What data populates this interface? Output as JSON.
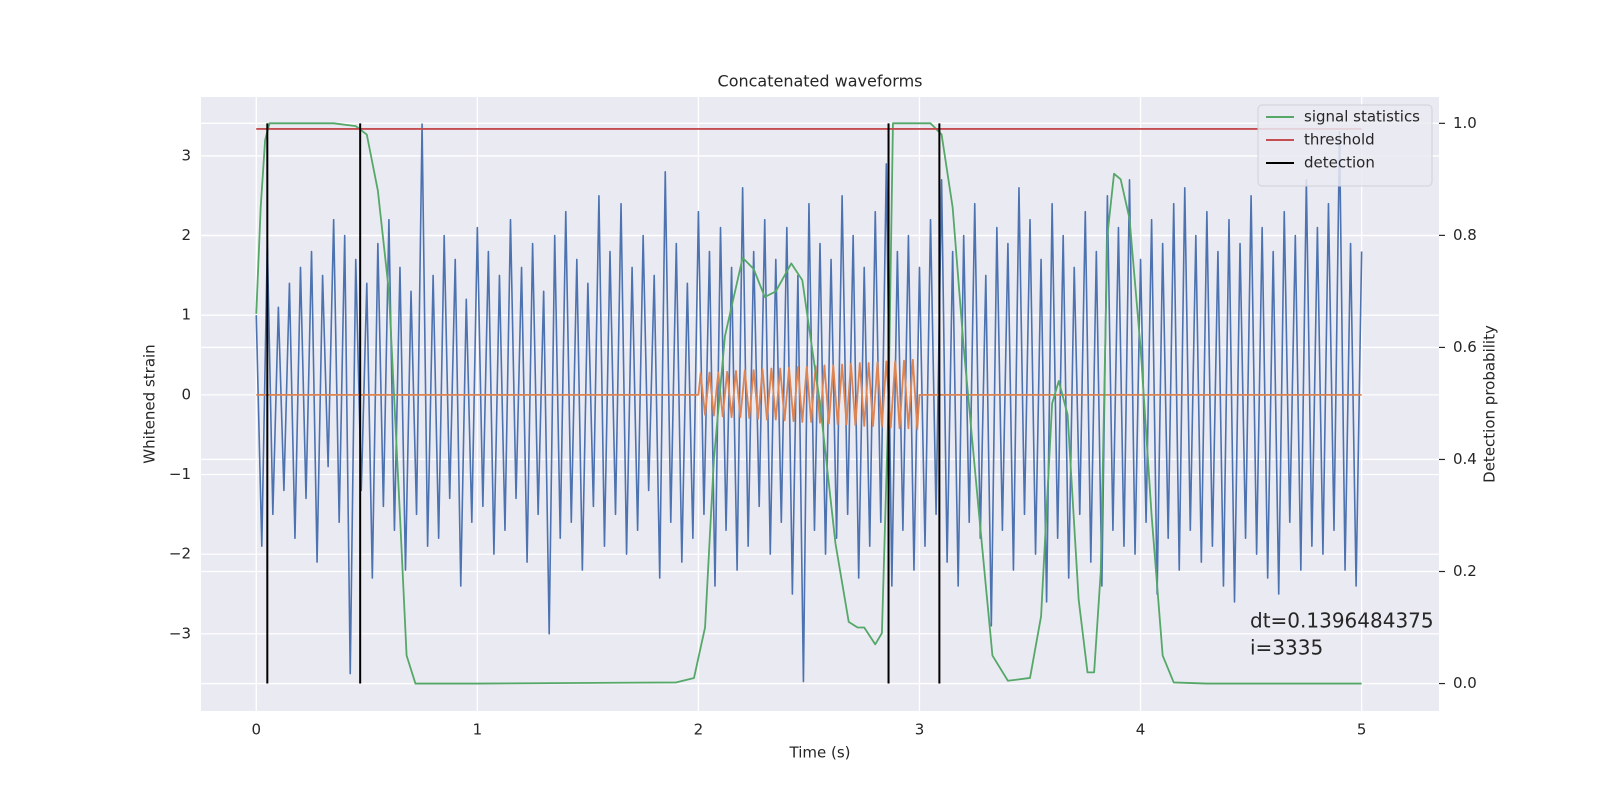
{
  "chart_data": {
    "type": "line",
    "title": "Concatenated waveforms",
    "xlabel": "Time (s)",
    "ylabel": "Whitened strain",
    "y2label": "Detection probability",
    "xlim": [
      -0.25,
      5.35
    ],
    "xticks": [
      0,
      1,
      2,
      3,
      4,
      5
    ],
    "ylim": [
      -3.97,
      3.74
    ],
    "yticks": [
      {
        "value": -3,
        "label": "−3"
      },
      {
        "value": -2,
        "label": "−2"
      },
      {
        "value": -1,
        "label": "−1"
      },
      0,
      1,
      2,
      3
    ],
    "y2lim": [
      -0.049,
      1.047
    ],
    "y2ticks": [
      {
        "value": 0,
        "label": "0.0"
      },
      0.2,
      0.4,
      0.6,
      0.8,
      {
        "value": 1,
        "label": "1.0"
      }
    ],
    "grid": true,
    "legend": "upper right",
    "annotation": [
      "dt=0.1396484375",
      " i=3335"
    ],
    "series": [
      {
        "color": "#4c72b0",
        "x": [
          0,
          0.025,
          0.05,
          0.075,
          0.1,
          0.125,
          0.15,
          0.175,
          0.2,
          0.225,
          0.25,
          0.275,
          0.3,
          0.325,
          0.35,
          0.375,
          0.4,
          0.425,
          0.45,
          0.475,
          0.5,
          0.525,
          0.55,
          0.575,
          0.6,
          0.625,
          0.65,
          0.675,
          0.7,
          0.725,
          0.75,
          0.775,
          0.8,
          0.825,
          0.85,
          0.875,
          0.9,
          0.925,
          0.95,
          0.975,
          1,
          1.025,
          1.05,
          1.075,
          1.1,
          1.125,
          1.15,
          1.175,
          1.2,
          1.225,
          1.25,
          1.275,
          1.3,
          1.325,
          1.35,
          1.375,
          1.4,
          1.425,
          1.45,
          1.475,
          1.5,
          1.525,
          1.55,
          1.575,
          1.6,
          1.625,
          1.65,
          1.675,
          1.7,
          1.725,
          1.75,
          1.775,
          1.8,
          1.825,
          1.85,
          1.875,
          1.9,
          1.925,
          1.95,
          1.975,
          2,
          2.025,
          2.05,
          2.075,
          2.1,
          2.125,
          2.15,
          2.175,
          2.2,
          2.225,
          2.25,
          2.275,
          2.3,
          2.325,
          2.35,
          2.375,
          2.4,
          2.425,
          2.45,
          2.475,
          2.5,
          2.525,
          2.55,
          2.575,
          2.6,
          2.625,
          2.65,
          2.675,
          2.7,
          2.725,
          2.75,
          2.775,
          2.8,
          2.825,
          2.85,
          2.875,
          2.9,
          2.925,
          2.95,
          2.975,
          3,
          3.025,
          3.05,
          3.075,
          3.1,
          3.125,
          3.15,
          3.175,
          3.2,
          3.225,
          3.25,
          3.275,
          3.3,
          3.325,
          3.35,
          3.375,
          3.4,
          3.425,
          3.45,
          3.475,
          3.5,
          3.525,
          3.55,
          3.575,
          3.6,
          3.625,
          3.65,
          3.675,
          3.7,
          3.725,
          3.75,
          3.775,
          3.8,
          3.825,
          3.85,
          3.875,
          3.9,
          3.925,
          3.95,
          3.975,
          4,
          4.025,
          4.05,
          4.075,
          4.1,
          4.125,
          4.15,
          4.175,
          4.2,
          4.225,
          4.25,
          4.275,
          4.3,
          4.325,
          4.35,
          4.375,
          4.4,
          4.425,
          4.45,
          4.475,
          4.5,
          4.525,
          4.55,
          4.575,
          4.6,
          4.625,
          4.65,
          4.675,
          4.7,
          4.725,
          4.75,
          4.775,
          4.8,
          4.825,
          4.85,
          4.875,
          4.9,
          4.925,
          4.95,
          4.975,
          5
        ],
        "values": [
          1.0,
          -1.9,
          1.9,
          -1.5,
          1.1,
          -1.2,
          1.4,
          -1.8,
          1.6,
          -1.3,
          1.8,
          -2.1,
          1.5,
          -0.9,
          2.2,
          -1.6,
          2.0,
          -3.5,
          1.7,
          -1.2,
          1.4,
          -2.3,
          1.9,
          -1.4,
          2.2,
          -1.7,
          1.6,
          -2.2,
          1.3,
          -1.5,
          3.4,
          -1.9,
          1.5,
          -1.8,
          2.0,
          -1.3,
          1.7,
          -2.4,
          1.2,
          -1.6,
          2.1,
          -1.4,
          1.8,
          -2.0,
          1.5,
          -1.7,
          2.2,
          -1.3,
          1.6,
          -2.1,
          1.9,
          -1.5,
          1.3,
          -3.0,
          2.0,
          -1.8,
          2.3,
          -1.6,
          1.7,
          -2.2,
          1.4,
          -1.4,
          2.5,
          -1.9,
          1.8,
          -1.5,
          2.4,
          -2.0,
          1.6,
          -1.7,
          2.0,
          -1.2,
          1.5,
          -2.3,
          2.8,
          -1.6,
          1.9,
          -2.1,
          1.4,
          -1.8,
          2.3,
          -1.5,
          1.8,
          -2.4,
          2.1,
          -1.7,
          1.6,
          -2.2,
          2.6,
          -1.9,
          1.8,
          -1.4,
          2.2,
          -2.0,
          1.7,
          -1.6,
          2.1,
          -2.5,
          1.5,
          -3.6,
          2.4,
          -1.7,
          1.9,
          -2.0,
          1.7,
          -1.8,
          2.5,
          -1.5,
          2.0,
          -2.3,
          1.6,
          -1.9,
          2.3,
          -1.6,
          2.9,
          -2.4,
          1.8,
          -1.7,
          2.0,
          -2.2,
          1.6,
          -1.9,
          2.2,
          -1.5,
          2.7,
          -2.1,
          1.8,
          -2.4,
          2.0,
          -1.6,
          2.4,
          -1.8,
          1.5,
          -2.9,
          2.1,
          -1.7,
          1.9,
          -2.2,
          2.6,
          -1.5,
          2.2,
          -2.0,
          1.7,
          -2.6,
          2.4,
          -1.8,
          2.0,
          -2.3,
          1.6,
          -1.5,
          2.3,
          -2.1,
          1.8,
          -2.4,
          2.5,
          -1.7,
          2.1,
          -1.9,
          2.7,
          -2.0,
          1.7,
          -1.6,
          2.2,
          -2.5,
          1.9,
          -1.8,
          2.4,
          -2.2,
          2.6,
          -1.7,
          2.0,
          -2.1,
          2.3,
          -1.9,
          1.8,
          -2.4,
          2.2,
          -2.6,
          1.9,
          -1.8,
          2.5,
          -2.0,
          2.1,
          -2.3,
          1.8,
          -2.5,
          2.3,
          -1.6,
          2.0,
          -2.2,
          2.7,
          -1.9,
          2.1,
          -2.0,
          2.4,
          -1.7,
          3.3,
          -2.2,
          1.9,
          -2.4,
          1.8
        ]
      },
      {
        "color": "#dd8452",
        "x": [
          0,
          2,
          2.01,
          2.03,
          2.05,
          2.07,
          2.09,
          2.11,
          2.13,
          2.15,
          2.17,
          2.19,
          2.21,
          2.23,
          2.25,
          2.27,
          2.29,
          2.31,
          2.33,
          2.35,
          2.37,
          2.39,
          2.41,
          2.43,
          2.45,
          2.47,
          2.49,
          2.51,
          2.53,
          2.55,
          2.57,
          2.59,
          2.61,
          2.63,
          2.65,
          2.67,
          2.69,
          2.71,
          2.73,
          2.75,
          2.77,
          2.79,
          2.81,
          2.83,
          2.85,
          2.87,
          2.89,
          2.91,
          2.93,
          2.95,
          2.97,
          2.99,
          3,
          5
        ],
        "values": [
          0,
          0,
          0.27,
          -0.25,
          0.28,
          -0.26,
          0.28,
          -0.27,
          0.29,
          -0.28,
          0.3,
          -0.28,
          0.31,
          -0.29,
          0.31,
          -0.3,
          0.32,
          -0.31,
          0.33,
          -0.31,
          0.33,
          -0.32,
          0.34,
          -0.33,
          0.35,
          -0.34,
          0.35,
          -0.34,
          0.36,
          -0.35,
          0.37,
          -0.36,
          0.37,
          -0.37,
          0.38,
          -0.37,
          0.39,
          -0.38,
          0.4,
          -0.39,
          0.4,
          -0.39,
          0.41,
          -0.4,
          0.42,
          -0.41,
          0.42,
          -0.42,
          0.43,
          -0.42,
          0.44,
          -0.43,
          0,
          0
        ]
      },
      {
        "name": "signal statistics",
        "color": "#55a868",
        "axis": "y2",
        "x": [
          0,
          0.02,
          0.04,
          0.06,
          0.1,
          0.35,
          0.45,
          0.5,
          0.55,
          0.6,
          0.65,
          0.68,
          0.72,
          1,
          1.9,
          1.98,
          2.03,
          2.07,
          2.12,
          2.2,
          2.25,
          2.3,
          2.35,
          2.42,
          2.47,
          2.55,
          2.62,
          2.68,
          2.72,
          2.75,
          2.8,
          2.83,
          2.86,
          2.88,
          3.05,
          3.1,
          3.15,
          3.2,
          3.27,
          3.33,
          3.4,
          3.5,
          3.55,
          3.6,
          3.63,
          3.67,
          3.72,
          3.76,
          3.79,
          3.82,
          3.85,
          3.88,
          3.91,
          3.95,
          4,
          4.05,
          4.1,
          4.15,
          4.3,
          5
        ],
        "values": [
          0.66,
          0.85,
          0.97,
          1,
          1,
          1,
          0.995,
          0.98,
          0.88,
          0.7,
          0.3,
          0.05,
          0,
          0,
          0.002,
          0.01,
          0.1,
          0.4,
          0.62,
          0.76,
          0.74,
          0.69,
          0.7,
          0.75,
          0.72,
          0.5,
          0.25,
          0.11,
          0.1,
          0.1,
          0.07,
          0.09,
          0.5,
          1,
          1,
          0.98,
          0.85,
          0.6,
          0.3,
          0.05,
          0.005,
          0.01,
          0.12,
          0.5,
          0.54,
          0.48,
          0.15,
          0.02,
          0.02,
          0.2,
          0.8,
          0.91,
          0.9,
          0.83,
          0.6,
          0.3,
          0.05,
          0.002,
          0,
          0
        ]
      },
      {
        "name": "threshold",
        "color": "#c44e52",
        "axis": "y2",
        "x": [
          0,
          5
        ],
        "values": [
          0.99,
          0.99
        ]
      }
    ],
    "detection": {
      "name": "detection",
      "color": "#000000",
      "axis": "y2",
      "x": [
        0.05,
        0.47,
        2.86,
        3.09
      ],
      "ymin": 0,
      "ymax": 1
    }
  }
}
